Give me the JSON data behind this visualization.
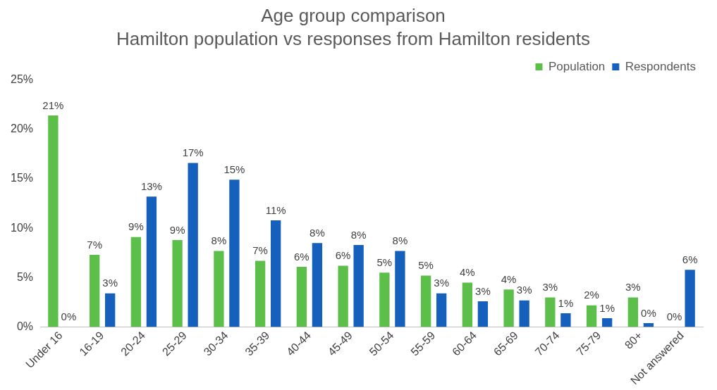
{
  "chart_data": {
    "type": "bar",
    "title": "Age group comparison",
    "subtitle": "Hamilton population vs responses from Hamilton residents",
    "categories": [
      "Under 16",
      "16-19",
      "20-24",
      "25-29",
      "30-34",
      "35-39",
      "40-44",
      "45-49",
      "50-54",
      "55-59",
      "60-64",
      "65-69",
      "70-74",
      "75-79",
      "80+",
      "Not answered"
    ],
    "series": [
      {
        "name": "Population",
        "color": "#5cbf4a",
        "values": [
          21.4,
          7.3,
          9.1,
          8.8,
          7.7,
          6.7,
          6.1,
          6.2,
          5.5,
          5.2,
          4.5,
          3.8,
          3.0,
          2.2,
          3.0,
          0
        ],
        "value_labels": [
          "21%",
          "7%",
          "9%",
          "9%",
          "8%",
          "7%",
          "6%",
          "6%",
          "5%",
          "5%",
          "4%",
          "4%",
          "3%",
          "2%",
          "3%",
          "0%"
        ]
      },
      {
        "name": "Respondents",
        "color": "#1560bd",
        "values": [
          0,
          3.4,
          13.2,
          16.6,
          14.9,
          10.8,
          8.5,
          8.3,
          7.7,
          3.4,
          2.6,
          2.7,
          1.4,
          0.9,
          0.4,
          5.8
        ],
        "value_labels": [
          "0%",
          "3%",
          "13%",
          "17%",
          "15%",
          "11%",
          "8%",
          "8%",
          "8%",
          "3%",
          "3%",
          "3%",
          "1%",
          "1%",
          "0%",
          "6%"
        ]
      }
    ],
    "ylim": [
      0,
      25
    ],
    "yticks": [
      {
        "value": 0,
        "label": "0%"
      },
      {
        "value": 5,
        "label": "5%"
      },
      {
        "value": 10,
        "label": "10%"
      },
      {
        "value": 15,
        "label": "15%"
      },
      {
        "value": 20,
        "label": "20%"
      },
      {
        "value": 25,
        "label": "25%"
      }
    ],
    "grid": false,
    "legend": "top right"
  }
}
